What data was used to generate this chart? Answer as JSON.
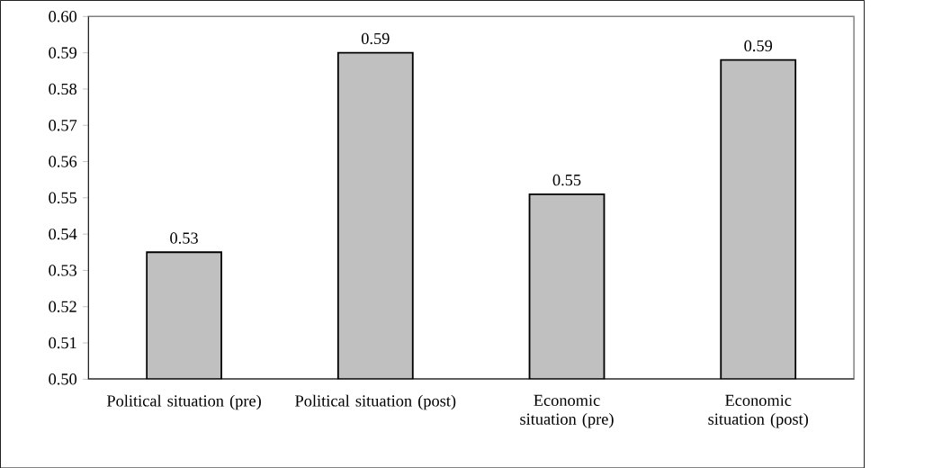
{
  "chart_data": {
    "type": "bar",
    "categories": [
      "Political situation (pre)",
      "Political situation (post)",
      "Economic situation (pre)",
      "Economic situation (post)"
    ],
    "values": [
      0.535,
      0.59,
      0.551,
      0.588
    ],
    "value_labels": [
      "0.53",
      "0.59",
      "0.55",
      "0.59"
    ],
    "color": "#c0c0c0",
    "ylim": [
      0.5,
      0.6
    ],
    "yticks": [
      {
        "value": 0.5,
        "label": "0.50"
      },
      {
        "value": 0.51,
        "label": "0.51"
      },
      {
        "value": 0.52,
        "label": "0.52"
      },
      {
        "value": 0.53,
        "label": "0.53"
      },
      {
        "value": 0.54,
        "label": "0.54"
      },
      {
        "value": 0.55,
        "label": "0.55"
      },
      {
        "value": 0.56,
        "label": "0.56"
      },
      {
        "value": 0.57,
        "label": "0.57"
      },
      {
        "value": 0.58,
        "label": "0.58"
      },
      {
        "value": 0.59,
        "label": "0.59"
      },
      {
        "value": 0.6,
        "label": "0.60"
      }
    ],
    "grid": false
  }
}
